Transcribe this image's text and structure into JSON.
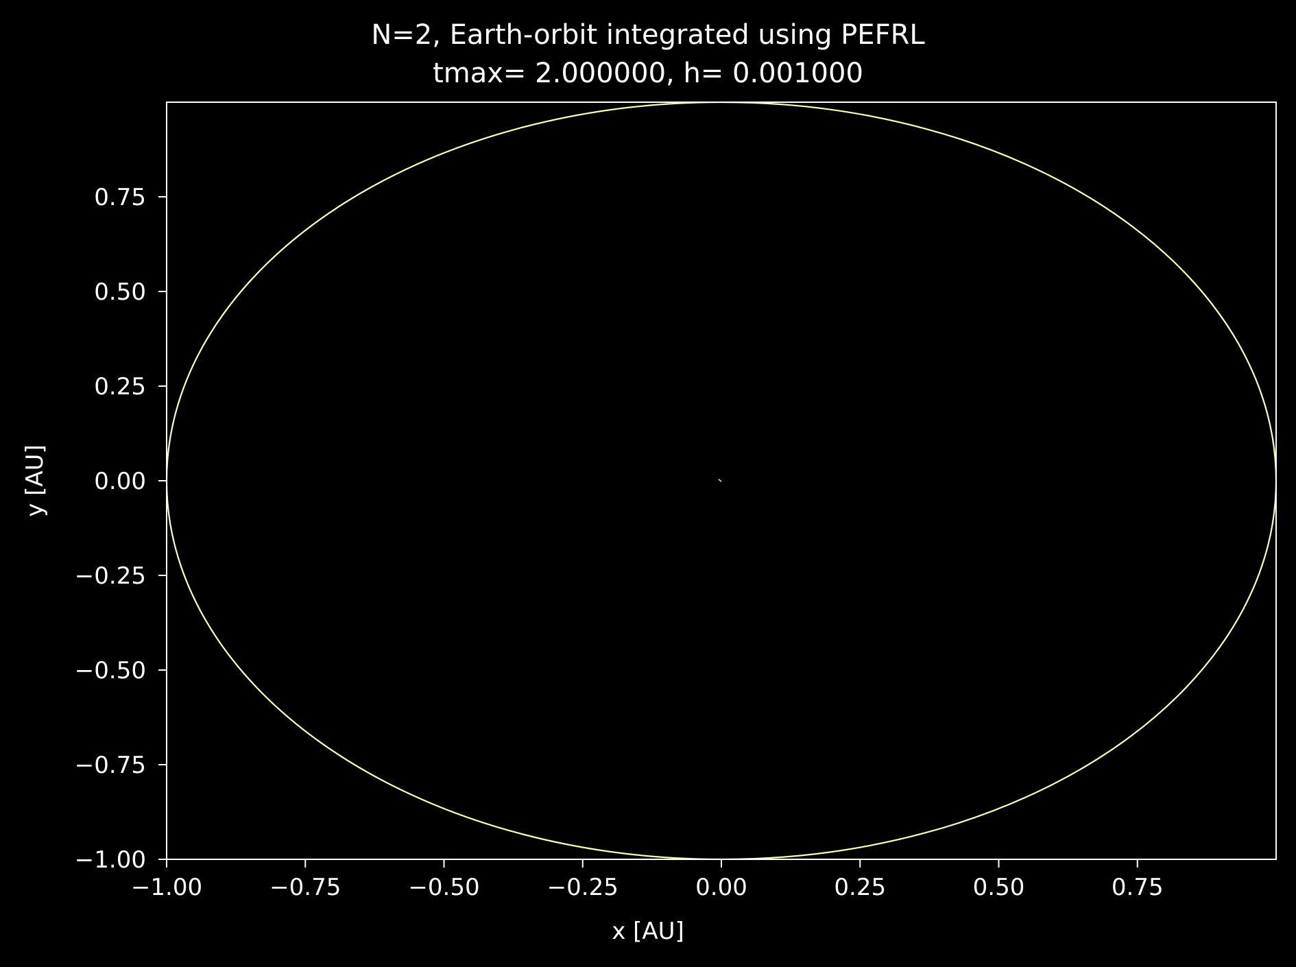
{
  "chart_data": {
    "type": "line",
    "title": "N=2, Earth-orbit integrated using PEFRL",
    "subtitle": "tmax= 2.000000, h= 0.001000",
    "xlabel": "x [AU]",
    "ylabel": "y [AU]",
    "xlim": [
      -1.0,
      1.0
    ],
    "ylim": [
      -1.0,
      1.0
    ],
    "xticks": [
      -1.0,
      -0.75,
      -0.5,
      -0.25,
      0.0,
      0.25,
      0.5,
      0.75
    ],
    "xtick_labels": [
      "−1.00",
      "−0.75",
      "−0.50",
      "−0.25",
      "0.00",
      "0.25",
      "0.50",
      "0.75"
    ],
    "yticks": [
      -1.0,
      -0.75,
      -0.5,
      -0.25,
      0.0,
      0.25,
      0.5,
      0.75
    ],
    "ytick_labels": [
      "−1.00",
      "−0.75",
      "−0.50",
      "−0.25",
      "0.00",
      "0.25",
      "0.50",
      "0.75"
    ],
    "grid": false,
    "background": "#000000",
    "foreground": "#ffffff",
    "series": [
      {
        "kind": "circular-orbit",
        "center": [
          0.0,
          0.0
        ],
        "radius": 1.0,
        "color": "#ffffb3"
      },
      {
        "kind": "central-body-track",
        "x": [
          -0.005,
          0.0
        ],
        "y": [
          0.004,
          -0.002
        ],
        "color": "#ffffb3"
      }
    ]
  }
}
